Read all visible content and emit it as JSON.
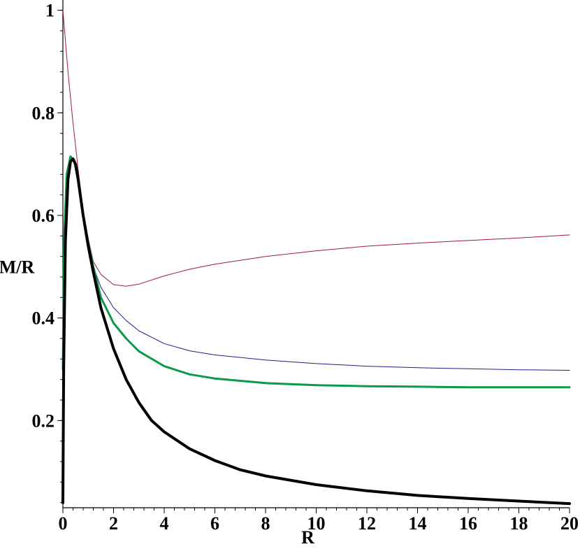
{
  "chart_data": {
    "type": "line",
    "title": "",
    "xlabel": "R",
    "ylabel": "M/R",
    "xlim": [
      0,
      20
    ],
    "ylim": [
      0.03,
      1.02
    ],
    "grid": false,
    "legend": "none",
    "x_ticks": [
      0,
      2,
      4,
      6,
      8,
      10,
      12,
      14,
      16,
      18,
      20
    ],
    "x_tick_labels": [
      "0",
      "2",
      "4",
      "6",
      "8",
      "10",
      "12",
      "14",
      "16",
      "18",
      "20"
    ],
    "y_ticks": [
      0.2,
      0.4,
      0.6,
      0.8,
      1.0
    ],
    "y_tick_labels": [
      "0.2",
      "0.4",
      "0.6",
      "0.8",
      "1"
    ],
    "series": [
      {
        "color": "#a01a35",
        "width": 1,
        "x": [
          0,
          0.2,
          0.4,
          0.6,
          0.8,
          1.0,
          1.2,
          1.5,
          2.0,
          2.5,
          3,
          4,
          5,
          6,
          8,
          10,
          12,
          14,
          16,
          18,
          20
        ],
        "y": [
          1.0,
          0.88,
          0.78,
          0.69,
          0.61,
          0.555,
          0.51,
          0.485,
          0.465,
          0.462,
          0.466,
          0.482,
          0.495,
          0.505,
          0.52,
          0.531,
          0.54,
          0.546,
          0.551,
          0.556,
          0.562
        ]
      },
      {
        "color": "#1f1f8f",
        "width": 1,
        "x": [
          0,
          0.05,
          0.15,
          0.3,
          0.45,
          0.6,
          0.8,
          1.0,
          1.2,
          1.5,
          2,
          2.5,
          3,
          4,
          5,
          6,
          8,
          10,
          12,
          14,
          16,
          18,
          20
        ],
        "y": [
          0.3,
          0.55,
          0.68,
          0.715,
          0.71,
          0.675,
          0.6,
          0.545,
          0.5,
          0.46,
          0.42,
          0.395,
          0.375,
          0.35,
          0.336,
          0.328,
          0.318,
          0.311,
          0.306,
          0.303,
          0.301,
          0.299,
          0.298
        ]
      },
      {
        "color": "#0b9a4c",
        "width": 3,
        "x": [
          0,
          0.05,
          0.15,
          0.3,
          0.45,
          0.6,
          0.8,
          1.0,
          1.2,
          1.5,
          2,
          2.5,
          3,
          4,
          5,
          6,
          8,
          10,
          12,
          14,
          16,
          18,
          20
        ],
        "y": [
          0.3,
          0.55,
          0.68,
          0.715,
          0.705,
          0.67,
          0.6,
          0.545,
          0.5,
          0.44,
          0.39,
          0.36,
          0.335,
          0.306,
          0.29,
          0.282,
          0.273,
          0.269,
          0.267,
          0.266,
          0.265,
          0.265,
          0.265
        ]
      },
      {
        "color": "#000000",
        "width": 4,
        "x": [
          0,
          0.03,
          0.1,
          0.2,
          0.3,
          0.4,
          0.5,
          0.6,
          0.8,
          1.0,
          1.2,
          1.5,
          2,
          2.5,
          3,
          3.5,
          4,
          5,
          6,
          7,
          8,
          10,
          12,
          14,
          16,
          18,
          20
        ],
        "y": [
          0.04,
          0.3,
          0.55,
          0.67,
          0.705,
          0.71,
          0.7,
          0.67,
          0.6,
          0.54,
          0.49,
          0.42,
          0.34,
          0.28,
          0.235,
          0.2,
          0.178,
          0.145,
          0.122,
          0.104,
          0.092,
          0.075,
          0.063,
          0.054,
          0.048,
          0.043,
          0.038
        ]
      }
    ]
  }
}
